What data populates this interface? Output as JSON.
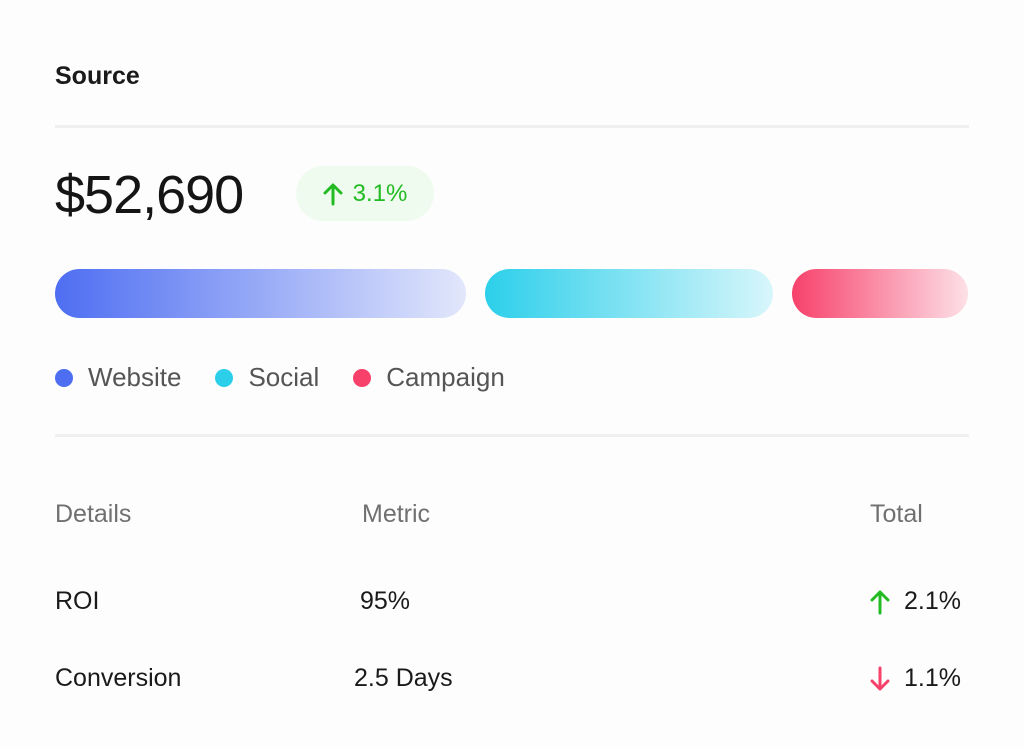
{
  "card": {
    "title": "Source",
    "amount": "$52,690",
    "change": {
      "direction": "up",
      "value": "3.1%",
      "color": "#22bb22"
    }
  },
  "sources": [
    {
      "label": "Website",
      "share": 47,
      "color": "#4e6ef2"
    },
    {
      "label": "Social",
      "share": 33,
      "color": "#2ccfea"
    },
    {
      "label": "Campaign",
      "share": 20,
      "color": "#f7416b"
    }
  ],
  "table": {
    "headers": [
      "Details",
      "Metric",
      "Total"
    ],
    "rows": [
      {
        "details": "ROI",
        "metric": "95%",
        "direction": "up",
        "total": "2.1%"
      },
      {
        "details": "Conversion",
        "metric": "2.5 Days",
        "direction": "down",
        "total": "1.1%"
      }
    ]
  }
}
